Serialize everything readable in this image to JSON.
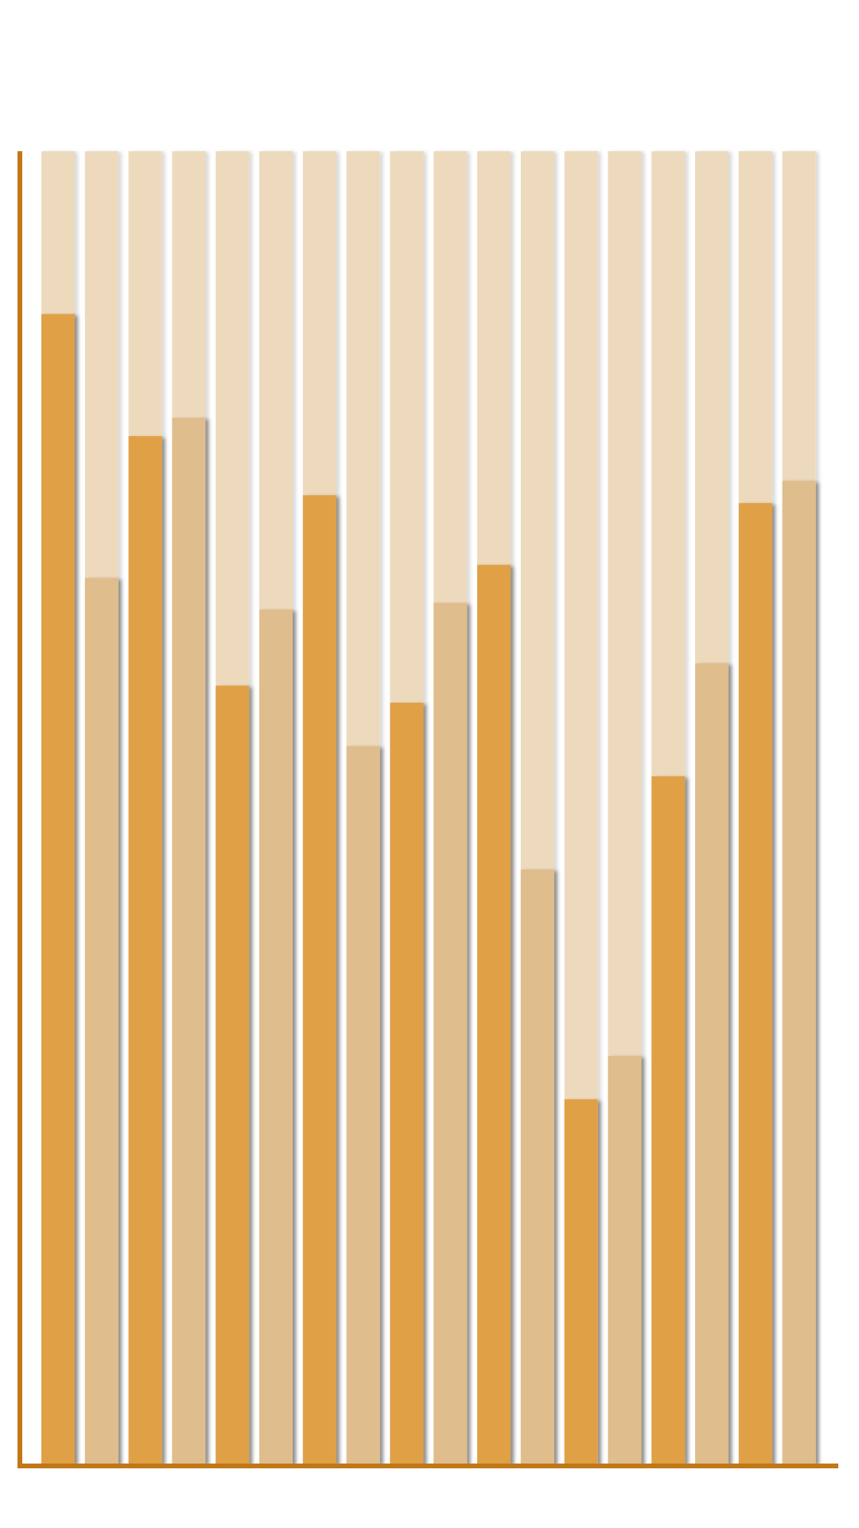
{
  "chart_data": {
    "type": "bar",
    "values": [
      87.6,
      67.5,
      78.3,
      79.7,
      59.3,
      65.1,
      73.8,
      54.7,
      58.0,
      65.6,
      68.5,
      45.3,
      27.8,
      31.1,
      52.4,
      61.0,
      73.2,
      74.9
    ],
    "colors": [
      "#e0a045",
      "#e0bd8c",
      "#e0a045",
      "#e0bd8c",
      "#e0a045",
      "#e0bd8c",
      "#e0a045",
      "#e0bd8c",
      "#e0a045",
      "#e0bd8c",
      "#e0a045",
      "#e0bd8c",
      "#e0a045",
      "#e0bd8c",
      "#e0a045",
      "#e0bd8c",
      "#e0a045",
      "#e0bd8c"
    ],
    "track_color": "#eddabd",
    "axis_color": "#c07818",
    "ylim": [
      0,
      100
    ]
  }
}
